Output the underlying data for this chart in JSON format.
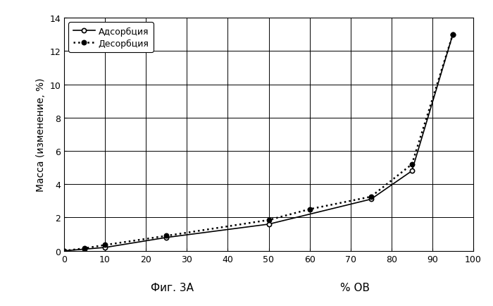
{
  "adsorption_x": [
    0,
    5,
    10,
    25,
    50,
    75,
    85,
    95
  ],
  "adsorption_y": [
    0,
    0.1,
    0.2,
    0.8,
    1.6,
    3.1,
    4.8,
    13.0
  ],
  "desorption_x": [
    0,
    5,
    10,
    25,
    50,
    60,
    75,
    85,
    95
  ],
  "desorption_y": [
    0,
    0.15,
    0.35,
    0.9,
    1.85,
    2.5,
    3.25,
    5.2,
    13.0
  ],
  "ylabel": "Масса (изменение, %)",
  "xlim": [
    0,
    100
  ],
  "ylim": [
    0,
    14
  ],
  "xticks": [
    0,
    10,
    20,
    30,
    40,
    50,
    60,
    70,
    80,
    90,
    100
  ],
  "yticks": [
    0,
    2,
    4,
    6,
    8,
    10,
    12,
    14
  ],
  "legend_adsorption": "Адсорбция",
  "legend_desorption": "Десорбция",
  "caption": "Фиг. 3А",
  "caption_x_label": "% ОВ",
  "line_color": "#000000",
  "bg_color": "#ffffff",
  "grid_color": "#000000",
  "caption_fontsize": 11,
  "ylabel_fontsize": 10,
  "tick_fontsize": 9,
  "legend_fontsize": 9
}
